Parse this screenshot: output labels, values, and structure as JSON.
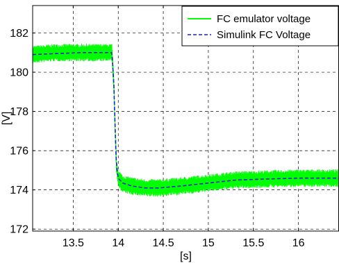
{
  "chart_data": {
    "type": "line",
    "title": "",
    "xlabel": "[s]",
    "ylabel": "[V]",
    "xlim": [
      13.05,
      16.45
    ],
    "ylim": [
      171.9,
      183.4
    ],
    "xticks": [
      13.5,
      14,
      14.5,
      15,
      15.5,
      16
    ],
    "xtick_labels": [
      "13.5",
      "14",
      "14.5",
      "15",
      "15.5",
      "16"
    ],
    "yticks": [
      172,
      174,
      176,
      178,
      180,
      182
    ],
    "ytick_labels": [
      "172",
      "174",
      "176",
      "178",
      "180",
      "182"
    ],
    "grid": true,
    "grid_style": "dashed",
    "legend_position": "top-right",
    "series": [
      {
        "name": "FC emulator voltage",
        "color": "#00ff00",
        "line_style": "solid",
        "noise_band": 0.45,
        "x": [
          13.05,
          13.3,
          13.6,
          13.93,
          13.95,
          13.97,
          13.98,
          14.0,
          14.05,
          14.15,
          14.3,
          14.45,
          14.7,
          15.0,
          15.3,
          15.6,
          16.0,
          16.45
        ],
        "y": [
          180.9,
          181.0,
          181.0,
          181.0,
          179.5,
          176.5,
          175.2,
          174.6,
          174.3,
          174.2,
          174.1,
          174.1,
          174.2,
          174.35,
          174.5,
          174.55,
          174.6,
          174.6
        ]
      },
      {
        "name": "Simulink FC Voltage",
        "color": "#1f1fd0",
        "line_style": "dashed",
        "x": [
          13.05,
          13.3,
          13.6,
          13.93,
          13.95,
          13.97,
          13.98,
          14.0,
          14.05,
          14.15,
          14.3,
          14.45,
          14.7,
          15.0,
          15.3,
          15.6,
          16.0,
          16.45
        ],
        "y": [
          180.9,
          180.95,
          181.0,
          181.0,
          179.5,
          176.5,
          175.2,
          174.6,
          174.35,
          174.2,
          174.1,
          174.1,
          174.2,
          174.35,
          174.5,
          174.55,
          174.6,
          174.6
        ]
      }
    ]
  }
}
